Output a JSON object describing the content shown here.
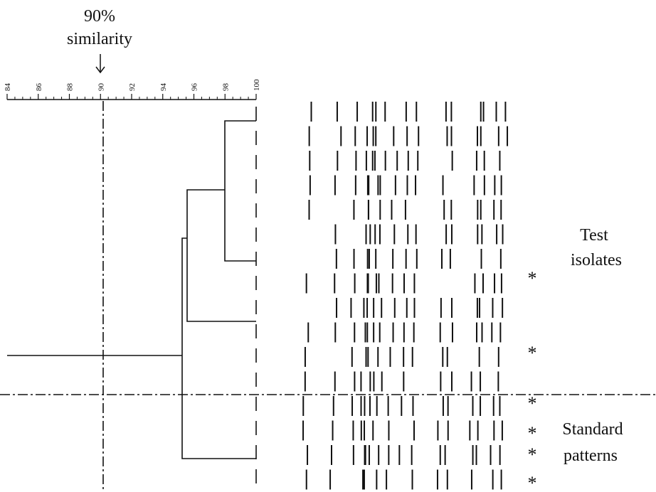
{
  "header": {
    "line1": "90%",
    "line2": "similarity"
  },
  "axis": {
    "ticks": [
      84,
      86,
      88,
      90,
      92,
      94,
      96,
      98,
      100
    ]
  },
  "labels": {
    "test": [
      "Test",
      "isolates"
    ],
    "standard": [
      "Standard",
      "patterns"
    ]
  },
  "markers": [
    "*",
    "*",
    "*",
    "*",
    "*",
    "*"
  ]
}
